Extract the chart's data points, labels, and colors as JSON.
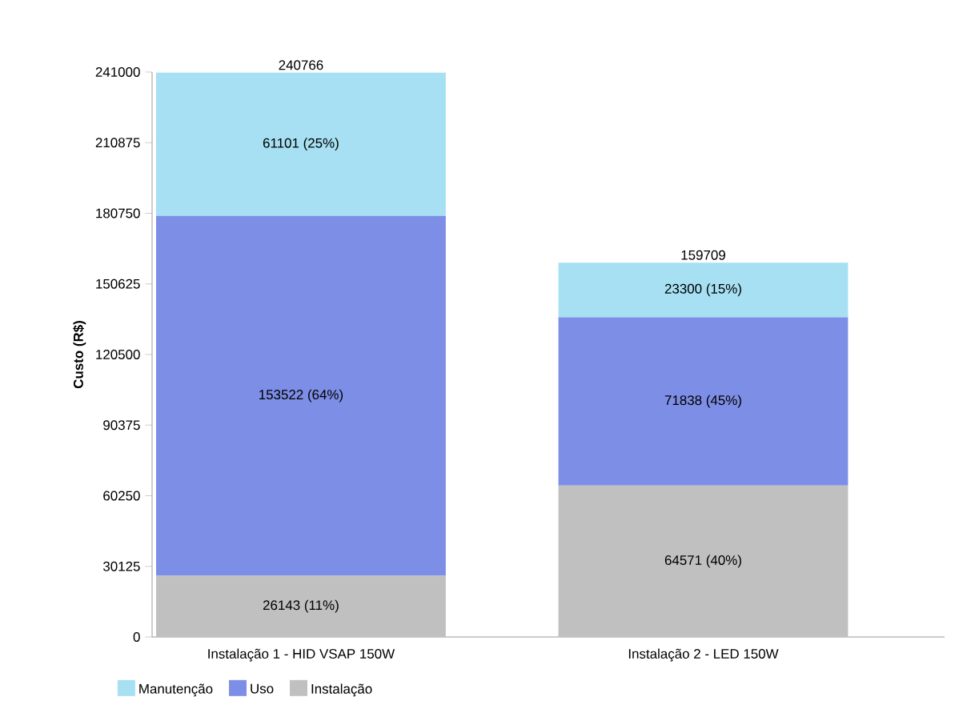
{
  "chart_data": {
    "type": "bar",
    "stacked": true,
    "ylabel": "Custo (R$)",
    "categories": [
      "Instalação 1 - HID VSAP 150W",
      "Instalação 2 - LED 150W"
    ],
    "series": [
      {
        "name": "Instalação",
        "color": "#c0c0c0",
        "values": [
          26143,
          64571
        ],
        "value_labels": [
          "26143 (11%)",
          "64571 (40%)"
        ]
      },
      {
        "name": "Uso",
        "color": "#7d8ee6",
        "values": [
          153522,
          71838
        ],
        "value_labels": [
          "153522 (64%)",
          "71838 (45%)"
        ]
      },
      {
        "name": "Manutenção",
        "color": "#a6e0f2",
        "values": [
          61101,
          23300
        ],
        "value_labels": [
          "61101 (25%)",
          "23300 (15%)"
        ]
      }
    ],
    "totals": [
      "240766",
      "159709"
    ],
    "ylim": [
      0,
      241000
    ],
    "yticks": [
      0,
      30125,
      60250,
      90375,
      120500,
      150625,
      180750,
      210875,
      241000
    ],
    "grid": false,
    "legend": "bottom left"
  }
}
